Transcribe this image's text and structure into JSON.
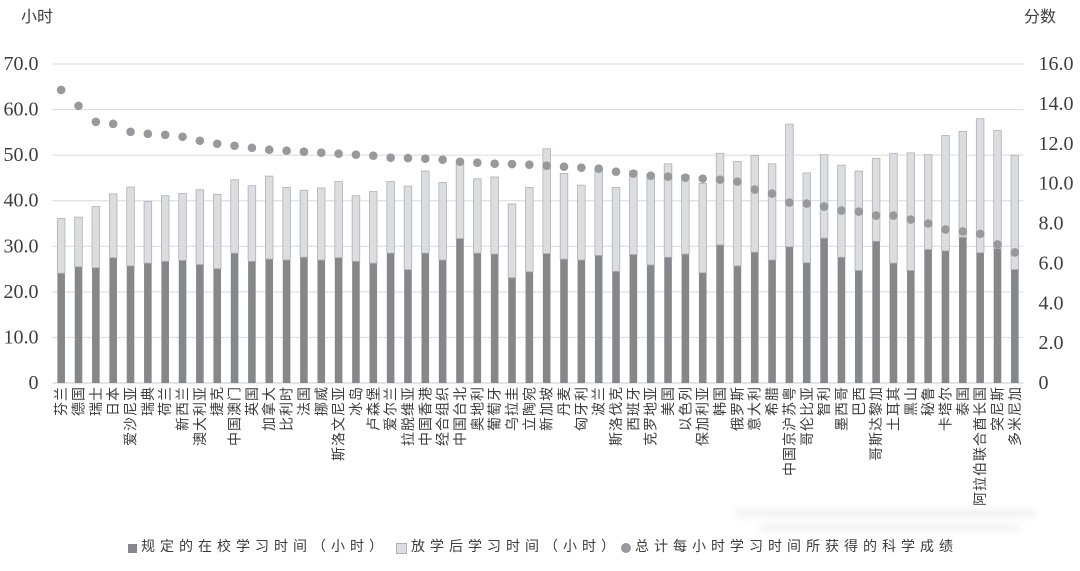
{
  "chart_data": {
    "type": "bar",
    "subtype": "stacked-bars-with-scatter-overlay",
    "title": "",
    "xlabel": "",
    "ylabel": "小时",
    "y2label": "分数",
    "ylim": [
      0,
      70
    ],
    "y2lim": [
      0,
      16
    ],
    "grid": "horizontal",
    "legend_position": "bottom",
    "left_axis_ticks": [
      "70.0",
      "60.0",
      "50.0",
      "40.0",
      "30.0",
      "20.0",
      "10.0",
      "0"
    ],
    "right_axis_ticks": [
      "16.0",
      "14.0",
      "12.0",
      "10.0",
      "8.0",
      "6.0",
      "4.0",
      "2.0",
      "0"
    ],
    "categories": [
      "芬兰",
      "德国",
      "瑞士",
      "日本",
      "爱沙尼亚",
      "瑞典",
      "荷兰",
      "新西兰",
      "澳大利亚",
      "捷克",
      "中国澳门",
      "英国",
      "加拿大",
      "比利时",
      "法国",
      "挪威",
      "斯洛文尼亚",
      "冰岛",
      "卢森堡",
      "爱尔兰",
      "拉脱维亚",
      "中国香港",
      "经合组织",
      "中国台北",
      "奥地利",
      "葡萄牙",
      "乌拉圭",
      "立陶宛",
      "新加坡",
      "丹麦",
      "匈牙利",
      "波兰",
      "斯洛伐克",
      "西班牙",
      "克罗地亚",
      "美国",
      "以色列",
      "保加利亚",
      "韩国",
      "俄罗斯",
      "意大利",
      "希腊",
      "中国京沪苏粤",
      "哥伦比亚",
      "智利",
      "墨西哥",
      "巴西",
      "哥斯达黎加",
      "土耳其",
      "黑山",
      "秘鲁",
      "卡塔尔",
      "泰国",
      "阿拉伯联合酋长国",
      "突尼斯",
      "多米尼加"
    ],
    "series": [
      {
        "name": "规定的在校学习时间（小时）",
        "type": "bar",
        "stack": "hours",
        "axis": "left",
        "values": [
          24.1,
          25.5,
          25.3,
          27.5,
          25.7,
          26.3,
          26.7,
          26.9,
          26.0,
          25.1,
          28.5,
          26.7,
          27.2,
          27.0,
          27.6,
          27.0,
          27.5,
          26.7,
          26.3,
          28.5,
          24.9,
          28.5,
          27.0,
          31.7,
          28.5,
          28.3,
          23.1,
          24.4,
          28.4,
          27.2,
          27.0,
          28.0,
          24.5,
          28.2,
          25.9,
          27.6,
          28.3,
          24.2,
          30.3,
          25.7,
          28.7,
          27.0,
          29.9,
          26.4,
          31.8,
          27.6,
          24.7,
          31.1,
          26.3,
          24.7,
          29.3,
          29.0,
          32.0,
          28.6,
          29.5,
          24.9
        ]
      },
      {
        "name": "放学后学习时间（小时）",
        "type": "bar",
        "stack": "hours",
        "axis": "left",
        "values": [
          12.0,
          10.9,
          13.4,
          14.0,
          17.3,
          13.5,
          14.4,
          14.7,
          16.4,
          16.3,
          16.1,
          16.6,
          18.2,
          15.9,
          14.7,
          15.8,
          16.7,
          14.4,
          15.7,
          15.7,
          18.3,
          18.0,
          17.0,
          16.5,
          16.3,
          16.9,
          16.2,
          18.5,
          23.0,
          18.8,
          16.4,
          19.0,
          18.4,
          18.3,
          19.9,
          20.5,
          17.3,
          19.6,
          20.1,
          22.9,
          21.2,
          21.1,
          26.9,
          19.7,
          18.3,
          20.2,
          21.8,
          18.2,
          24.1,
          25.8,
          20.8,
          25.3,
          23.2,
          29.4,
          25.9,
          25.1
        ]
      },
      {
        "name": "总计每小时学习时间所获得的科学成绩",
        "type": "scatter",
        "axis": "right",
        "values": [
          14.7,
          13.9,
          13.1,
          13.0,
          12.6,
          12.5,
          12.45,
          12.35,
          12.15,
          12.0,
          11.9,
          11.8,
          11.7,
          11.65,
          11.6,
          11.55,
          11.5,
          11.45,
          11.4,
          11.3,
          11.28,
          11.25,
          11.2,
          11.1,
          11.05,
          11.0,
          10.98,
          10.95,
          10.9,
          10.85,
          10.8,
          10.75,
          10.6,
          10.5,
          10.4,
          10.35,
          10.3,
          10.25,
          10.2,
          10.1,
          9.7,
          9.5,
          9.05,
          9.0,
          8.85,
          8.65,
          8.6,
          8.4,
          8.4,
          8.2,
          8.0,
          7.7,
          7.6,
          7.48,
          6.95,
          6.55
        ]
      }
    ]
  },
  "legend": {
    "items": [
      {
        "label": "规定的在校学习时间（小时）",
        "marker": "square",
        "color": "#85878b"
      },
      {
        "label": "放学后学习时间（小时）",
        "marker": "square",
        "color": "#dcdde0"
      },
      {
        "label": "总计每小时学习时间所获得的科学成绩",
        "marker": "circle",
        "color": "#97999c"
      }
    ]
  },
  "colors": {
    "in_school_bar": "#85878b",
    "after_school_bar": "#dcdde0",
    "after_school_border": "#aeb1b5",
    "score_dot": "#97999c",
    "gridline": "#d9d9d9",
    "baseline": "#c9c9c9",
    "text": "#3d3d3d",
    "background": "#ffffff"
  }
}
